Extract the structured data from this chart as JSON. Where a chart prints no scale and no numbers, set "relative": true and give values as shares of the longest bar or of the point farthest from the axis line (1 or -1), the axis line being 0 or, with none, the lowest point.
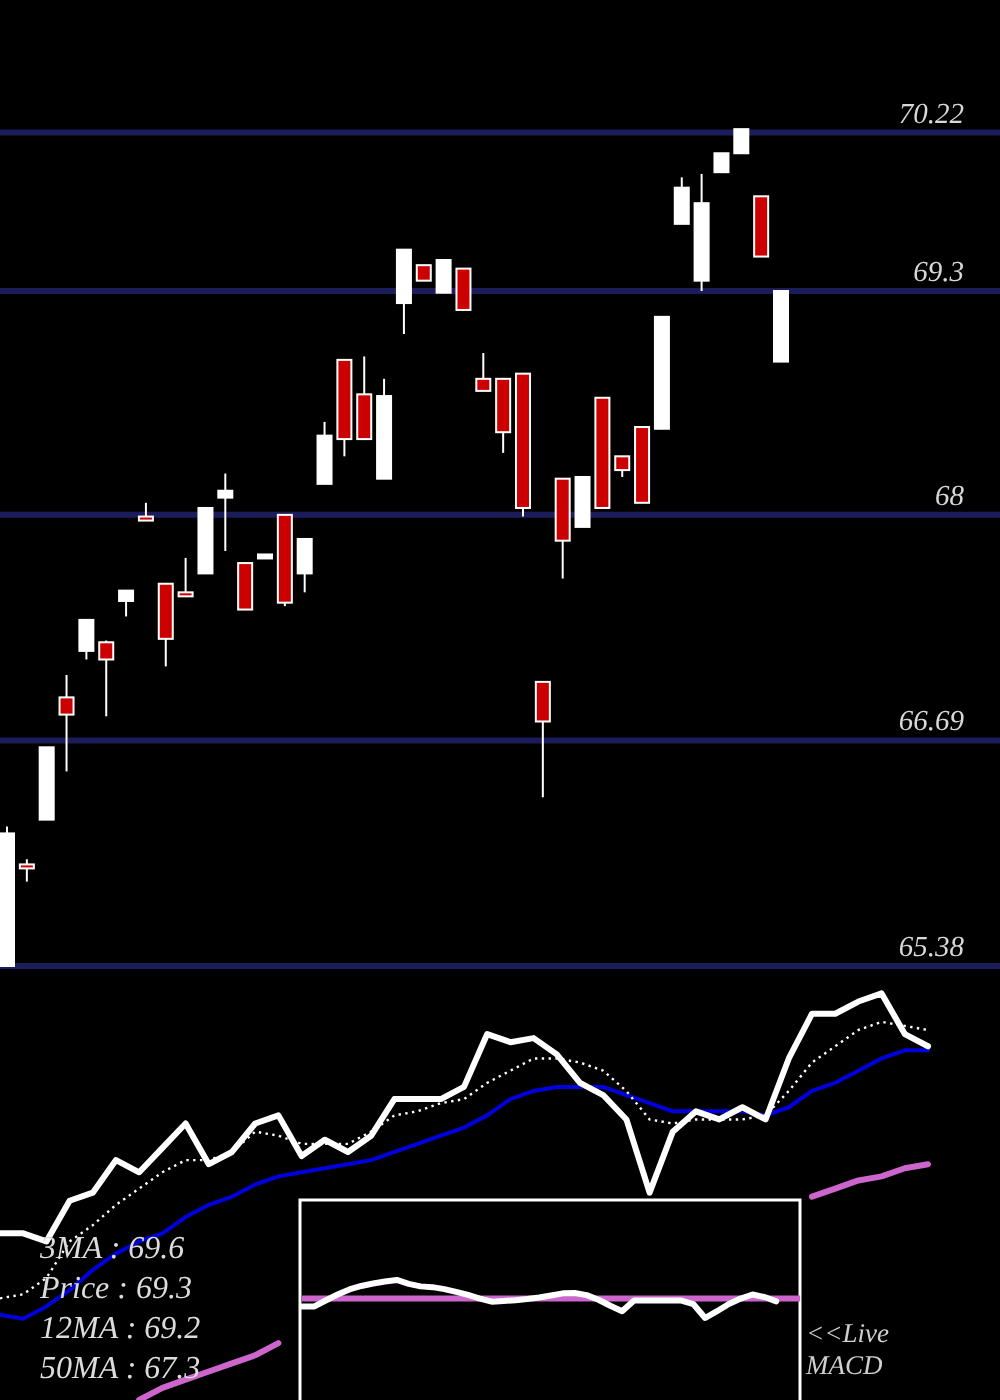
{
  "chart_data": [
    {
      "type": "candlestick",
      "categories": [
        null,
        null,
        null,
        null,
        null,
        null,
        null,
        null,
        null,
        null,
        null,
        null,
        null,
        null,
        null,
        null,
        null,
        null,
        null,
        null,
        null,
        null,
        null,
        null,
        null,
        null,
        null,
        null,
        null,
        null,
        null,
        null,
        null,
        null,
        null,
        null,
        null,
        null,
        null,
        null
      ],
      "ohlc": [
        [
          65.38,
          66.19,
          65.38,
          66.15
        ],
        [
          65.97,
          66.0,
          65.87,
          65.95
        ],
        [
          66.23,
          66.65,
          66.23,
          66.65
        ],
        [
          66.94,
          67.07,
          66.51,
          66.84
        ],
        [
          67.21,
          67.39,
          67.16,
          67.39
        ],
        [
          67.26,
          67.27,
          66.83,
          67.16
        ],
        [
          67.5,
          67.56,
          67.41,
          67.56
        ],
        [
          67.99,
          68.07,
          67.97,
          67.98
        ],
        [
          67.6,
          67.6,
          67.12,
          67.28
        ],
        [
          67.55,
          67.75,
          67.53,
          67.53
        ],
        [
          67.66,
          68.04,
          67.66,
          68.04
        ],
        [
          68.1,
          68.24,
          67.79,
          68.14
        ],
        [
          67.72,
          67.72,
          67.45,
          67.45
        ],
        [
          67.75,
          67.77,
          67.75,
          67.77
        ],
        [
          68.0,
          68.0,
          67.47,
          67.49
        ],
        [
          67.66,
          67.86,
          67.55,
          67.86
        ],
        [
          68.18,
          68.54,
          68.18,
          68.46
        ],
        [
          68.9,
          68.9,
          68.34,
          68.44
        ],
        [
          68.7,
          68.92,
          68.44,
          68.44
        ],
        [
          68.21,
          68.79,
          68.21,
          68.69
        ],
        [
          69.23,
          69.54,
          69.05,
          69.54
        ],
        [
          69.45,
          69.45,
          69.36,
          69.36
        ],
        [
          69.29,
          69.48,
          69.29,
          69.48
        ],
        [
          69.43,
          69.43,
          69.19,
          69.19
        ],
        [
          68.79,
          68.94,
          68.72,
          68.72
        ],
        [
          68.79,
          68.79,
          68.36,
          68.48
        ],
        [
          68.82,
          68.82,
          67.99,
          68.04
        ],
        [
          67.03,
          67.03,
          66.36,
          66.8
        ],
        [
          68.21,
          68.21,
          67.63,
          67.85
        ],
        [
          67.93,
          68.22,
          67.93,
          68.22
        ],
        [
          68.68,
          68.68,
          68.04,
          68.04
        ],
        [
          68.34,
          68.34,
          68.22,
          68.26
        ],
        [
          68.51,
          68.51,
          68.07,
          68.07
        ],
        [
          68.5,
          69.15,
          68.5,
          69.15
        ],
        [
          69.69,
          69.96,
          69.69,
          69.9
        ],
        [
          69.36,
          69.98,
          69.3,
          69.81
        ],
        [
          69.99,
          70.1,
          69.99,
          70.1
        ],
        [
          70.1,
          70.24,
          70.1,
          70.24
        ],
        [
          69.85,
          69.85,
          69.5,
          69.5
        ],
        [
          68.89,
          69.3,
          68.89,
          69.3
        ]
      ],
      "colors": [
        "#ffffff",
        "#cc0000",
        "#ffffff",
        "#cc0000",
        "#ffffff",
        "#cc0000",
        "#ffffff",
        "#cc0000",
        "#cc0000",
        "#cc0000",
        "#ffffff",
        "#ffffff",
        "#cc0000",
        "#ffffff",
        "#cc0000",
        "#ffffff",
        "#ffffff",
        "#cc0000",
        "#cc0000",
        "#ffffff",
        "#ffffff",
        "#cc0000",
        "#ffffff",
        "#cc0000",
        "#cc0000",
        "#cc0000",
        "#cc0000",
        "#cc0000",
        "#cc0000",
        "#ffffff",
        "#cc0000",
        "#cc0000",
        "#cc0000",
        "#ffffff",
        "#ffffff",
        "#ffffff",
        "#ffffff",
        "#ffffff",
        "#cc0000",
        "#ffffff"
      ],
      "ylim": [
        65.38,
        70.99
      ],
      "yticks": [
        65.38,
        66.69,
        68,
        69.3,
        70.22
      ],
      "grid": "y"
    },
    {
      "type": "line",
      "relative": true,
      "line_style": "solid",
      "categories": [
        null,
        null,
        null,
        null,
        null,
        null,
        null,
        null,
        null,
        null,
        null,
        null,
        null,
        null,
        null,
        null,
        null,
        null,
        null,
        null,
        null,
        null,
        null,
        null,
        null,
        null,
        null,
        null,
        null,
        null,
        null,
        null,
        null,
        null,
        null,
        null,
        null,
        null,
        null,
        null,
        null
      ],
      "series": [
        {
          "color": "#cc66cc",
          "values": [
            null,
            null,
            null,
            null,
            null,
            null,
            0.0,
            0.03,
            0.05,
            0.07,
            0.09,
            0.11,
            0.14,
            null,
            null,
            null,
            null,
            null,
            null,
            null,
            null,
            null,
            null,
            null,
            null,
            null,
            null,
            null,
            null,
            null,
            null,
            null,
            null,
            null,
            null,
            0.5,
            0.52,
            0.54,
            0.55,
            0.57,
            0.58
          ]
        },
        {
          "color": "#0000dd",
          "values": [
            0.21,
            0.2,
            0.23,
            0.27,
            0.32,
            0.36,
            0.39,
            0.41,
            0.45,
            0.48,
            0.5,
            0.53,
            0.55,
            0.56,
            0.57,
            0.58,
            0.59,
            0.61,
            0.63,
            0.65,
            0.67,
            0.7,
            0.74,
            0.76,
            0.77,
            0.77,
            0.77,
            0.75,
            0.73,
            0.71,
            0.71,
            0.71,
            0.71,
            0.7,
            0.72,
            0.76,
            0.78,
            0.81,
            0.84,
            0.86,
            0.86
          ]
        },
        {
          "color": "#ffffff",
          "line_style": "dotted",
          "values": [
            0.25,
            0.26,
            0.3,
            0.39,
            0.43,
            0.48,
            0.52,
            0.56,
            0.59,
            0.59,
            0.61,
            0.66,
            0.65,
            0.63,
            0.63,
            0.63,
            0.66,
            0.7,
            0.71,
            0.73,
            0.74,
            0.78,
            0.81,
            0.84,
            0.84,
            0.83,
            0.81,
            0.76,
            0.69,
            0.68,
            0.69,
            0.69,
            0.69,
            0.7,
            0.76,
            0.83,
            0.87,
            0.91,
            0.93,
            0.92,
            0.91
          ]
        },
        {
          "color": "#ffffff",
          "values": [
            0.41,
            0.41,
            0.39,
            0.49,
            0.51,
            0.59,
            0.56,
            0.62,
            0.68,
            0.58,
            0.61,
            0.68,
            0.7,
            0.6,
            0.64,
            0.61,
            0.65,
            0.74,
            0.74,
            0.74,
            0.77,
            0.9,
            0.88,
            0.89,
            0.85,
            0.78,
            0.75,
            0.69,
            0.51,
            0.66,
            0.71,
            0.69,
            0.72,
            0.69,
            0.84,
            0.95,
            0.95,
            0.98,
            1.0,
            0.9,
            0.87
          ]
        }
      ],
      "annotations": [
        "3MA : 69.6",
        "Price : 69.3",
        "12MA : 69.2",
        "50MA : 67.3"
      ]
    },
    {
      "type": "line",
      "relative": true,
      "line_style": "solid",
      "categories": [
        null,
        null,
        null,
        null,
        null,
        null,
        null,
        null,
        null,
        null,
        null,
        null,
        null,
        null,
        null,
        null,
        null,
        null,
        null,
        null,
        null,
        null,
        null,
        null,
        null,
        null,
        null,
        null,
        null,
        null,
        null,
        null,
        null,
        null,
        null,
        null,
        null,
        null,
        null,
        null,
        null,
        null,
        null
      ],
      "series": [
        {
          "color": "#ffffff",
          "values": [
            -0.41,
            -0.41,
            -0.1,
            0.21,
            0.47,
            0.65,
            0.78,
            0.88,
            0.96,
            0.76,
            0.63,
            0.59,
            0.49,
            0.35,
            0.19,
            0.0,
            -0.16,
            -0.12,
            -0.08,
            -0.02,
            0.06,
            0.16,
            0.27,
            0.29,
            0.18,
            -0.06,
            -0.37,
            -0.65,
            -0.1,
            -0.1,
            -0.1,
            -0.1,
            -0.1,
            -0.28,
            -1.0,
            -0.65,
            -0.28,
            0.0,
            0.21,
            0.08,
            -0.14,
            null,
            null
          ]
        }
      ],
      "ref_lines": [
        {
          "axis": "y",
          "value": 0,
          "color": "#cc66cc"
        }
      ],
      "annotations": [
        "<<Live MACD"
      ]
    }
  ]
}
